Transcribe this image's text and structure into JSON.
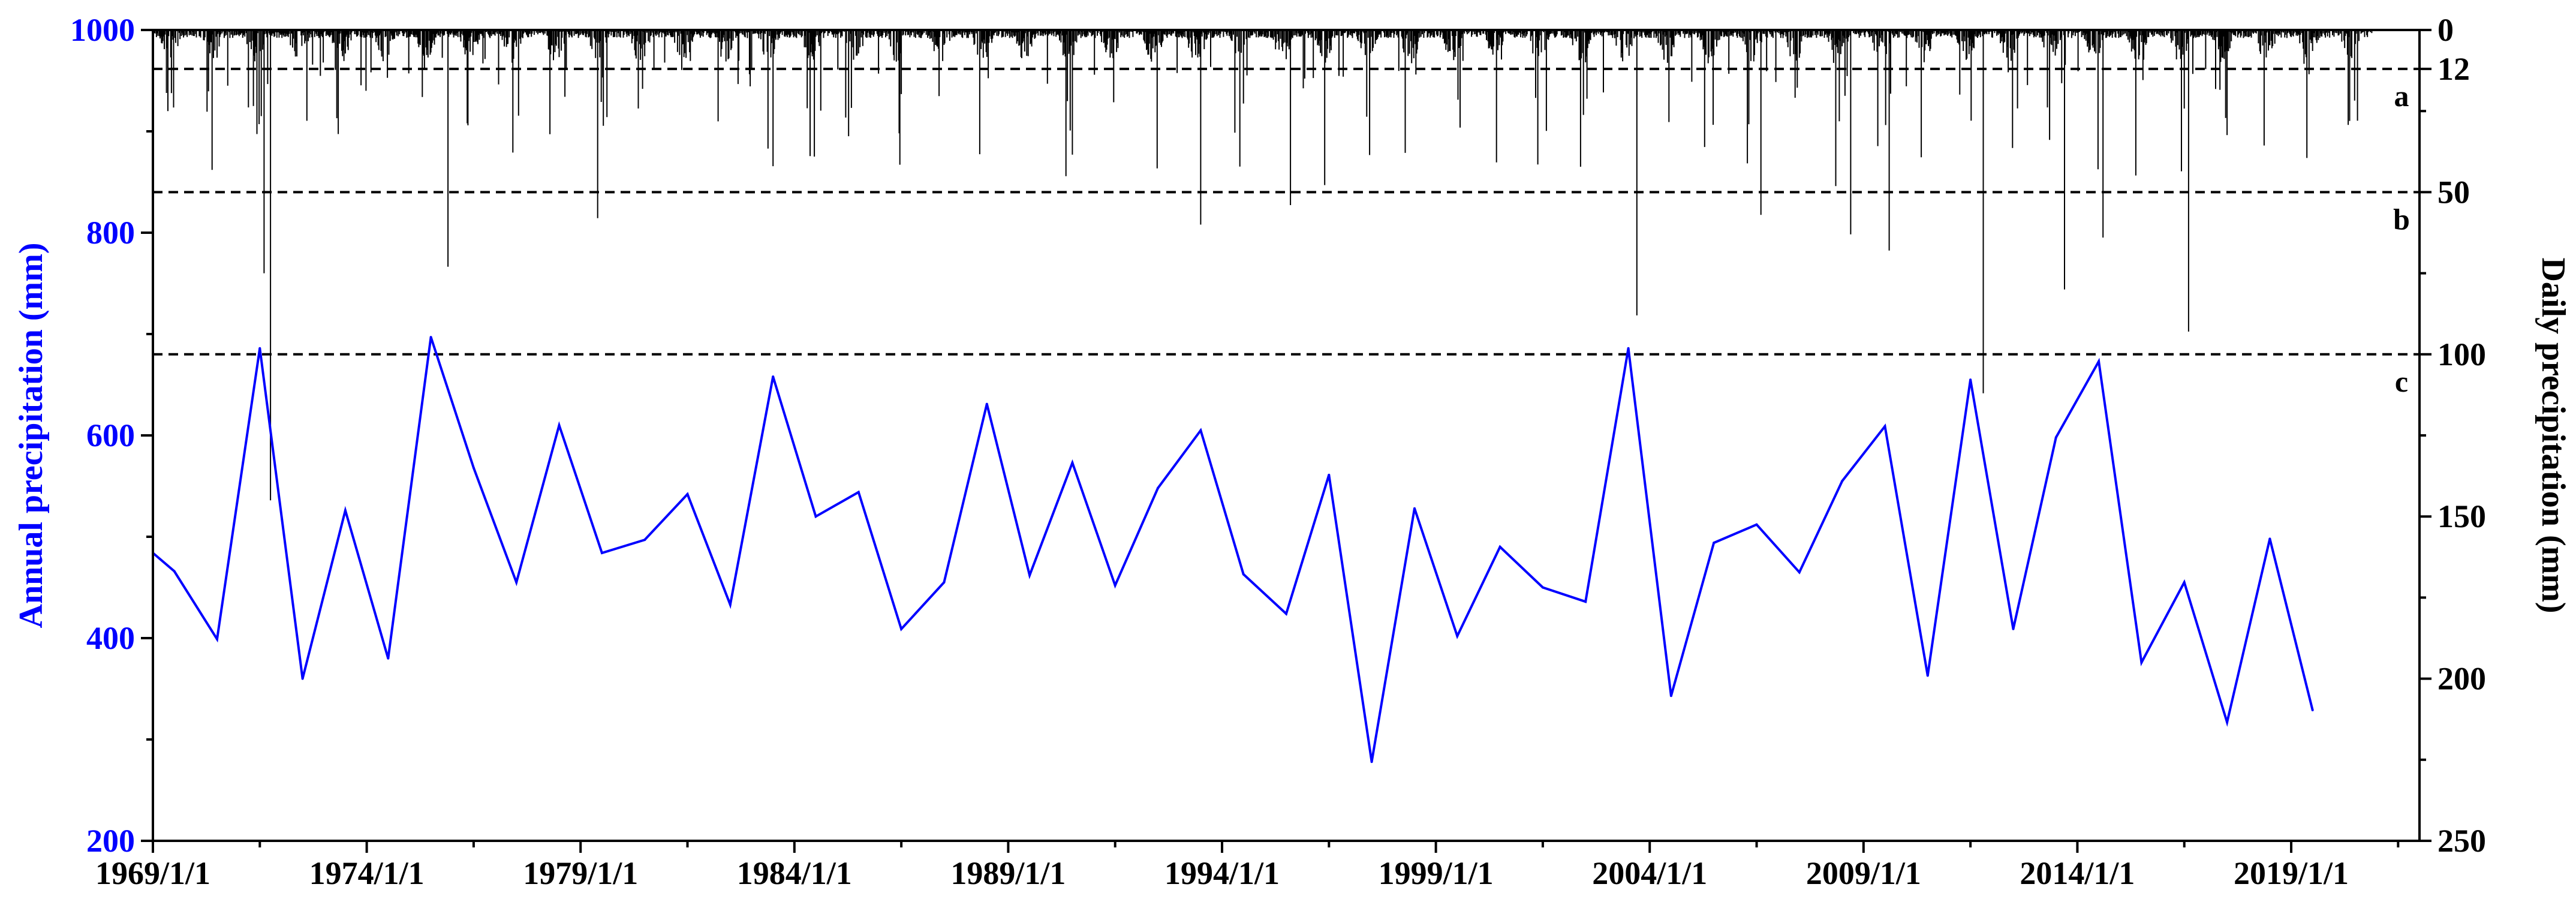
{
  "chart_data": {
    "type": "line",
    "title": "",
    "left_axis": {
      "label": "Annual precipitation (mm)",
      "ylim": [
        200,
        1000
      ],
      "ticks": [
        200,
        400,
        600,
        800,
        1000
      ],
      "color": "#0000ff"
    },
    "right_axis": {
      "label": "Daily precipitation (mm)",
      "ylim": [
        0,
        250
      ],
      "inverted": true,
      "ticks": [
        0,
        12,
        50,
        100,
        150,
        200,
        250
      ],
      "color": "#000000"
    },
    "x_axis": {
      "range": [
        1969,
        2022
      ],
      "ticks": [
        1969,
        1974,
        1979,
        1984,
        1989,
        1994,
        1999,
        2004,
        2009,
        2014,
        2019
      ],
      "tick_labels": [
        "1969/1/1",
        "1974/1/1",
        "1979/1/1",
        "1984/1/1",
        "1989/1/1",
        "1994/1/1",
        "1999/1/1",
        "2004/1/1",
        "2009/1/1",
        "2014/1/1",
        "2019/1/1"
      ]
    },
    "thresholds": [
      {
        "label": "a",
        "daily_mm": 12
      },
      {
        "label": "b",
        "daily_mm": 50
      },
      {
        "label": "c",
        "daily_mm": 100
      }
    ],
    "series": [
      {
        "axis": "left",
        "color": "#0000ff",
        "points": [
          {
            "x": 1969.0,
            "y": 484
          },
          {
            "x": 1969.5,
            "y": 466
          },
          {
            "x": 1970.5,
            "y": 399
          },
          {
            "x": 1971.5,
            "y": 686
          },
          {
            "x": 1972.5,
            "y": 360
          },
          {
            "x": 1973.5,
            "y": 526
          },
          {
            "x": 1974.5,
            "y": 380
          },
          {
            "x": 1975.5,
            "y": 697
          },
          {
            "x": 1976.5,
            "y": 568
          },
          {
            "x": 1977.5,
            "y": 455
          },
          {
            "x": 1978.5,
            "y": 610
          },
          {
            "x": 1979.5,
            "y": 484
          },
          {
            "x": 1980.5,
            "y": 497
          },
          {
            "x": 1981.5,
            "y": 542
          },
          {
            "x": 1982.5,
            "y": 433
          },
          {
            "x": 1983.5,
            "y": 658
          },
          {
            "x": 1984.5,
            "y": 520
          },
          {
            "x": 1985.5,
            "y": 544
          },
          {
            "x": 1986.5,
            "y": 409
          },
          {
            "x": 1987.5,
            "y": 455
          },
          {
            "x": 1988.5,
            "y": 631
          },
          {
            "x": 1989.5,
            "y": 462
          },
          {
            "x": 1990.5,
            "y": 573
          },
          {
            "x": 1991.5,
            "y": 452
          },
          {
            "x": 1992.5,
            "y": 548
          },
          {
            "x": 1993.5,
            "y": 605
          },
          {
            "x": 1994.5,
            "y": 463
          },
          {
            "x": 1995.5,
            "y": 424
          },
          {
            "x": 1996.5,
            "y": 561
          },
          {
            "x": 1997.5,
            "y": 278
          },
          {
            "x": 1998.5,
            "y": 528
          },
          {
            "x": 1999.5,
            "y": 402
          },
          {
            "x": 2000.5,
            "y": 490
          },
          {
            "x": 2001.5,
            "y": 450
          },
          {
            "x": 2002.5,
            "y": 436
          },
          {
            "x": 2003.5,
            "y": 686
          },
          {
            "x": 2004.5,
            "y": 343
          },
          {
            "x": 2005.5,
            "y": 494
          },
          {
            "x": 2006.5,
            "y": 512
          },
          {
            "x": 2007.5,
            "y": 465
          },
          {
            "x": 2008.5,
            "y": 555
          },
          {
            "x": 2009.5,
            "y": 609
          },
          {
            "x": 2010.5,
            "y": 363
          },
          {
            "x": 2011.5,
            "y": 655
          },
          {
            "x": 2012.5,
            "y": 409
          },
          {
            "x": 2013.5,
            "y": 598
          },
          {
            "x": 2014.5,
            "y": 673
          },
          {
            "x": 2015.5,
            "y": 376
          },
          {
            "x": 2016.5,
            "y": 455
          },
          {
            "x": 2017.5,
            "y": 317
          },
          {
            "x": 2018.5,
            "y": 498
          },
          {
            "x": 2019.5,
            "y": 329
          }
        ]
      },
      {
        "axis": "right",
        "type": "bar",
        "color": "#000000",
        "description_hidden": true,
        "notable_maxima": [
          {
            "x": 1971.75,
            "y": 145
          },
          {
            "x": 1971.6,
            "y": 75
          },
          {
            "x": 1972.6,
            "y": 28
          },
          {
            "x": 1975.9,
            "y": 73
          },
          {
            "x": 1979.4,
            "y": 58
          },
          {
            "x": 1983.5,
            "y": 42
          },
          {
            "x": 1993.5,
            "y": 60
          },
          {
            "x": 1995.6,
            "y": 54
          },
          {
            "x": 2003.7,
            "y": 88
          },
          {
            "x": 2006.6,
            "y": 57
          },
          {
            "x": 2008.7,
            "y": 63
          },
          {
            "x": 2009.6,
            "y": 68
          },
          {
            "x": 2011.8,
            "y": 112
          },
          {
            "x": 2013.7,
            "y": 80
          },
          {
            "x": 2014.6,
            "y": 64
          },
          {
            "x": 2016.6,
            "y": 93
          }
        ]
      }
    ]
  }
}
